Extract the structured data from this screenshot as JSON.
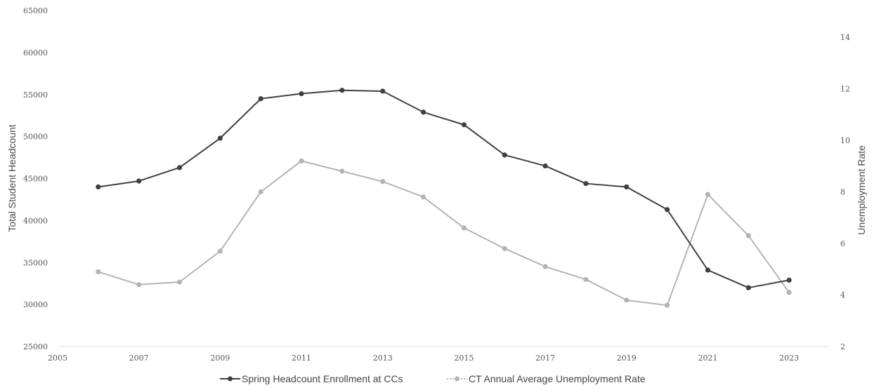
{
  "chart_data": {
    "type": "line",
    "x": [
      2006,
      2007,
      2008,
      2009,
      2010,
      2011,
      2012,
      2013,
      2014,
      2015,
      2016,
      2017,
      2018,
      2019,
      2020,
      2021,
      2022,
      2023
    ],
    "xlim": [
      2005,
      2024
    ],
    "x_ticks": [
      "2005",
      "2007",
      "2009",
      "2011",
      "2013",
      "2015",
      "2017",
      "2019",
      "2021",
      "2023"
    ],
    "ylabel": "Total Student Headcount",
    "ylim": [
      25000,
      65000
    ],
    "y_ticks": [
      "25000",
      "30000",
      "35000",
      "40000",
      "45000",
      "50000",
      "55000",
      "60000",
      "65000"
    ],
    "y2label": "Unemployment Rate",
    "y2lim": [
      2,
      16
    ],
    "y2_ticks": [
      "2",
      "4",
      "6",
      "8",
      "10",
      "12",
      "14"
    ],
    "grid": false,
    "legend_position": "bottom",
    "series": [
      {
        "name": "Spring Headcount Enrollment at CCs",
        "axis": "left",
        "color": "#404040",
        "values": [
          44000,
          44700,
          46300,
          49800,
          54500,
          55100,
          55500,
          55400,
          52900,
          51400,
          47800,
          46500,
          44400,
          44000,
          41300,
          34100,
          32000,
          32900
        ]
      },
      {
        "name": "CT Annual Average Unemployment Rate",
        "axis": "right",
        "color": "#b4b4b4",
        "values": [
          4.9,
          4.4,
          4.5,
          5.7,
          8.0,
          9.2,
          8.8,
          8.4,
          7.8,
          6.6,
          5.8,
          5.1,
          4.6,
          3.8,
          3.6,
          7.9,
          6.3,
          4.1
        ]
      }
    ]
  }
}
